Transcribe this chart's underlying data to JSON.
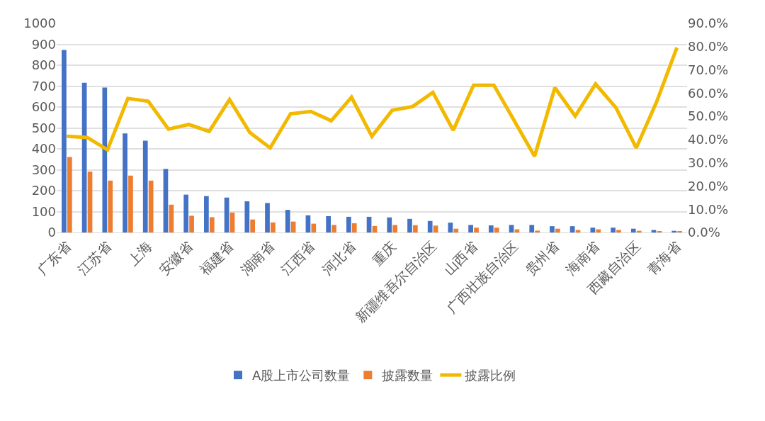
{
  "chart_data": {
    "type": "bar",
    "categories": [
      "广东省",
      null,
      "江苏省",
      null,
      "上海",
      null,
      "安徽省",
      null,
      "福建省",
      null,
      "湖南省",
      null,
      "江西省",
      null,
      "河北省",
      null,
      "重庆",
      null,
      "新疆维吾尔自治区",
      null,
      "山西省",
      null,
      "广西壮族自治区",
      null,
      "贵州省",
      null,
      "海南省",
      null,
      "西藏自治区",
      null,
      "青海省"
    ],
    "series": [
      {
        "name": "A股上市公司数量",
        "color": "#4472c4",
        "values": [
          873,
          716,
          693,
          474,
          439,
          304,
          181,
          174,
          167,
          149,
          141,
          108,
          82,
          78,
          75,
          75,
          72,
          65,
          55,
          47,
          36,
          34,
          36,
          36,
          30,
          30,
          23,
          23,
          18,
          12,
          8
        ]
      },
      {
        "name": "披露数量",
        "color": "#ed7d31",
        "values": [
          361,
          291,
          248,
          272,
          248,
          133,
          80,
          73,
          95,
          62,
          48,
          52,
          42,
          36,
          44,
          31,
          36,
          35,
          33,
          18,
          23,
          23,
          15,
          9,
          18,
          12,
          15,
          12,
          8,
          6,
          6
        ]
      },
      {
        "name": "披露比例",
        "color": "#f2b900",
        "type": "line",
        "axis": "y2",
        "values": [
          41.4,
          40.9,
          35.6,
          57.7,
          56.5,
          44.5,
          46.5,
          43.5,
          57.2,
          43,
          36.4,
          51.1,
          52.1,
          48.1,
          58.2,
          41.4,
          52.6,
          54.2,
          60.3,
          44,
          63.4,
          63.4,
          48.1,
          32.8,
          62.3,
          50.1,
          63.9,
          53.7,
          36.4,
          56.2,
          79.6
        ]
      }
    ],
    "ylim": [
      0,
      1000
    ],
    "yticks": [
      0,
      100,
      200,
      300,
      400,
      500,
      600,
      700,
      800,
      900,
      1000
    ],
    "y2lim": [
      0,
      90
    ],
    "y2ticks": [
      {
        "value": 0,
        "label": "0.0%"
      },
      {
        "value": 10,
        "label": "10.0%"
      },
      {
        "value": 20,
        "label": "20.0%"
      },
      {
        "value": 30,
        "label": "30.0%"
      },
      {
        "value": 40,
        "label": "40.0%"
      },
      {
        "value": 50,
        "label": "50.0%"
      },
      {
        "value": 60,
        "label": "60.0%"
      },
      {
        "value": 70,
        "label": "70.0%"
      },
      {
        "value": 80,
        "label": "80.0%"
      },
      {
        "value": 90,
        "label": "90.0%"
      }
    ],
    "grid": "y",
    "legend": "bottom"
  }
}
